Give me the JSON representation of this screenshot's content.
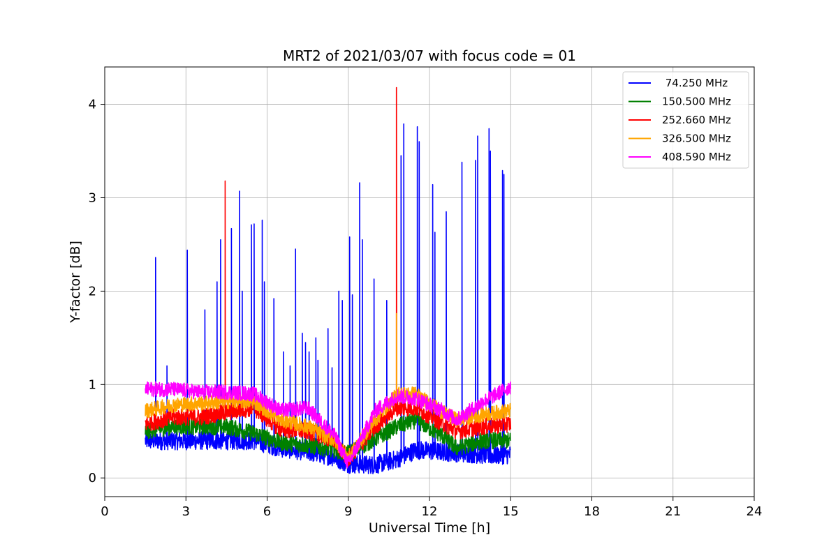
{
  "chart_data": {
    "type": "line",
    "title": "MRT2 of 2021/03/07 with focus code = 01",
    "xlabel": "Universal Time [h]",
    "ylabel": "Y-factor [dB]",
    "xlim": [
      0,
      24
    ],
    "ylim": [
      -0.2,
      4.4
    ],
    "xticks": [
      0,
      3,
      6,
      9,
      12,
      15,
      18,
      21,
      24
    ],
    "yticks": [
      0,
      1,
      2,
      3,
      4
    ],
    "grid": true,
    "legend_position": "top-right",
    "series": [
      {
        "name": " 74.250 MHz",
        "color": "#0000ff",
        "baseline": [
          [
            1.5,
            0.4
          ],
          [
            2.5,
            0.4
          ],
          [
            3.5,
            0.4
          ],
          [
            4.5,
            0.4
          ],
          [
            5.5,
            0.4
          ],
          [
            6.5,
            0.32
          ],
          [
            7.5,
            0.28
          ],
          [
            8.5,
            0.22
          ],
          [
            9.0,
            0.15
          ],
          [
            10.0,
            0.14
          ],
          [
            10.8,
            0.2
          ],
          [
            11.5,
            0.3
          ],
          [
            12.5,
            0.28
          ],
          [
            13.5,
            0.26
          ],
          [
            14.3,
            0.24
          ],
          [
            15.0,
            0.25
          ]
        ],
        "noise": 0.1,
        "spikes": [
          [
            1.88,
            2.36
          ],
          [
            2.3,
            1.2
          ],
          [
            3.05,
            2.44
          ],
          [
            3.7,
            1.8
          ],
          [
            4.15,
            2.1
          ],
          [
            4.28,
            2.55
          ],
          [
            4.68,
            2.67
          ],
          [
            4.98,
            3.07
          ],
          [
            5.08,
            2.0
          ],
          [
            5.42,
            2.71
          ],
          [
            5.52,
            2.72
          ],
          [
            5.82,
            2.76
          ],
          [
            5.9,
            2.1
          ],
          [
            6.25,
            1.92
          ],
          [
            6.6,
            1.35
          ],
          [
            6.85,
            1.2
          ],
          [
            7.05,
            2.45
          ],
          [
            7.3,
            1.55
          ],
          [
            7.42,
            1.45
          ],
          [
            7.55,
            1.35
          ],
          [
            7.8,
            1.5
          ],
          [
            7.88,
            1.26
          ],
          [
            8.25,
            1.6
          ],
          [
            8.4,
            1.18
          ],
          [
            8.65,
            2.0
          ],
          [
            8.78,
            1.9
          ],
          [
            9.05,
            2.58
          ],
          [
            9.15,
            1.96
          ],
          [
            9.42,
            3.16
          ],
          [
            9.52,
            2.55
          ],
          [
            9.95,
            2.13
          ],
          [
            10.42,
            1.9
          ],
          [
            10.95,
            3.45
          ],
          [
            11.05,
            3.79
          ],
          [
            11.55,
            3.76
          ],
          [
            11.62,
            3.6
          ],
          [
            12.12,
            3.14
          ],
          [
            12.2,
            2.63
          ],
          [
            12.62,
            2.85
          ],
          [
            13.2,
            3.38
          ],
          [
            13.7,
            3.4
          ],
          [
            13.78,
            3.66
          ],
          [
            14.2,
            3.74
          ],
          [
            14.25,
            3.5
          ],
          [
            14.7,
            3.29
          ],
          [
            14.75,
            3.25
          ]
        ]
      },
      {
        "name": "150.500 MHz",
        "color": "#008000",
        "baseline": [
          [
            1.5,
            0.5
          ],
          [
            2.5,
            0.55
          ],
          [
            3.5,
            0.55
          ],
          [
            4.5,
            0.55
          ],
          [
            5.5,
            0.48
          ],
          [
            6.5,
            0.38
          ],
          [
            7.5,
            0.35
          ],
          [
            8.5,
            0.3
          ],
          [
            9.0,
            0.26
          ],
          [
            10.0,
            0.42
          ],
          [
            10.8,
            0.55
          ],
          [
            11.5,
            0.62
          ],
          [
            12.5,
            0.45
          ],
          [
            13.0,
            0.32
          ],
          [
            14.0,
            0.4
          ],
          [
            15.0,
            0.4
          ]
        ],
        "noise": 0.09,
        "spikes": []
      },
      {
        "name": "252.660 MHz",
        "color": "#ff0000",
        "baseline": [
          [
            1.5,
            0.58
          ],
          [
            2.5,
            0.65
          ],
          [
            3.5,
            0.65
          ],
          [
            4.5,
            0.7
          ],
          [
            5.5,
            0.75
          ],
          [
            6.5,
            0.52
          ],
          [
            7.5,
            0.5
          ],
          [
            8.5,
            0.4
          ],
          [
            9.0,
            0.2
          ],
          [
            10.0,
            0.55
          ],
          [
            10.8,
            0.75
          ],
          [
            11.5,
            0.75
          ],
          [
            12.5,
            0.58
          ],
          [
            13.0,
            0.5
          ],
          [
            14.0,
            0.55
          ],
          [
            15.0,
            0.58
          ]
        ],
        "noise": 0.09,
        "spikes": [
          [
            4.45,
            3.18
          ],
          [
            10.78,
            4.18
          ]
        ]
      },
      {
        "name": "326.500 MHz",
        "color": "#ffa500",
        "baseline": [
          [
            1.5,
            0.72
          ],
          [
            2.5,
            0.78
          ],
          [
            3.5,
            0.8
          ],
          [
            4.5,
            0.82
          ],
          [
            5.5,
            0.82
          ],
          [
            6.5,
            0.62
          ],
          [
            7.5,
            0.55
          ],
          [
            8.5,
            0.4
          ],
          [
            9.0,
            0.22
          ],
          [
            10.0,
            0.62
          ],
          [
            10.8,
            0.9
          ],
          [
            11.5,
            0.9
          ],
          [
            12.5,
            0.7
          ],
          [
            13.0,
            0.62
          ],
          [
            14.0,
            0.68
          ],
          [
            15.0,
            0.72
          ]
        ],
        "noise": 0.08,
        "spikes": [
          [
            10.78,
            1.76
          ]
        ]
      },
      {
        "name": "408.590 MHz",
        "color": "#ff00ff",
        "baseline": [
          [
            1.5,
            0.95
          ],
          [
            2.5,
            0.95
          ],
          [
            3.5,
            0.92
          ],
          [
            4.5,
            0.92
          ],
          [
            5.5,
            0.9
          ],
          [
            6.5,
            0.72
          ],
          [
            7.5,
            0.75
          ],
          [
            8.5,
            0.45
          ],
          [
            9.0,
            0.15
          ],
          [
            10.0,
            0.72
          ],
          [
            10.8,
            0.88
          ],
          [
            11.5,
            0.85
          ],
          [
            12.5,
            0.72
          ],
          [
            13.0,
            0.62
          ],
          [
            14.0,
            0.82
          ],
          [
            15.0,
            0.98
          ]
        ],
        "noise": 0.08,
        "spikes": []
      }
    ]
  }
}
